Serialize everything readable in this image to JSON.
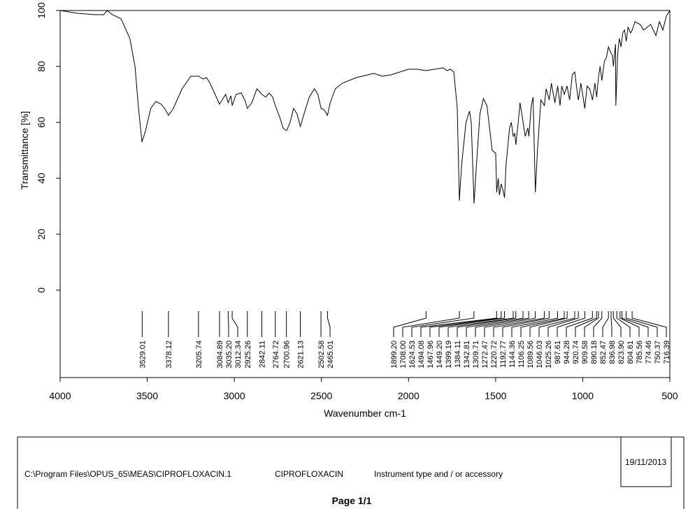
{
  "chart_data": {
    "type": "line",
    "color": "#000000",
    "xlabel": "Wavenumber cm-1",
    "ylabel": "Transmittance [%]",
    "xlim": [
      4000,
      500
    ],
    "ylim": [
      -31.25,
      100
    ],
    "xticks": [
      4000,
      3500,
      3000,
      2500,
      2000,
      1500,
      1000,
      500
    ],
    "yticks": [
      0,
      20,
      40,
      60,
      80,
      100
    ],
    "x": [
      4000,
      3900,
      3800,
      3750,
      3730,
      3700,
      3650,
      3600,
      3570,
      3550,
      3530,
      3510,
      3480,
      3450,
      3420,
      3400,
      3378,
      3350,
      3300,
      3250,
      3205,
      3180,
      3160,
      3140,
      3110,
      3085,
      3070,
      3050,
      3035,
      3020,
      3012,
      2990,
      2960,
      2940,
      2925,
      2900,
      2870,
      2842,
      2820,
      2800,
      2780,
      2765,
      2740,
      2720,
      2700,
      2680,
      2660,
      2640,
      2621,
      2600,
      2570,
      2540,
      2520,
      2502,
      2485,
      2465,
      2450,
      2420,
      2380,
      2300,
      2200,
      2150,
      2100,
      2000,
      1950,
      1900,
      1850,
      1800,
      1780,
      1760,
      1740,
      1720,
      1708,
      1695,
      1670,
      1650,
      1640,
      1624,
      1610,
      1590,
      1570,
      1550,
      1520,
      1500,
      1494,
      1485,
      1478,
      1468,
      1455,
      1449,
      1440,
      1420,
      1410,
      1399,
      1390,
      1384,
      1370,
      1360,
      1342,
      1330,
      1315,
      1309,
      1295,
      1285,
      1272,
      1260,
      1240,
      1220,
      1210,
      1192,
      1180,
      1160,
      1144,
      1130,
      1120,
      1106,
      1090,
      1075,
      1060,
      1046,
      1030,
      1025,
      1010,
      988,
      975,
      960,
      944,
      930,
      920,
      910,
      900,
      890,
      875,
      865,
      852,
      840,
      830,
      824,
      812,
      810,
      800,
      790,
      780,
      770,
      760,
      750,
      740,
      725,
      716,
      700,
      670,
      650,
      630,
      610,
      580,
      560,
      540,
      520,
      500
    ],
    "values": [
      100,
      99,
      98.5,
      98.5,
      100,
      98.5,
      97,
      90,
      80,
      65,
      53,
      57,
      65,
      67.5,
      66.5,
      65,
      62.5,
      65,
      72,
      76.5,
      76.5,
      75.5,
      76,
      74,
      70,
      66.5,
      68,
      70,
      67,
      69.5,
      66,
      70,
      70.5,
      68,
      65,
      67,
      72,
      70,
      69,
      70.5,
      69,
      66,
      62,
      58,
      57,
      60,
      65,
      63,
      58.5,
      63,
      69,
      72,
      70,
      65,
      64.5,
      62.5,
      67,
      72,
      74,
      76,
      77.5,
      76.5,
      77,
      79,
      79,
      78.5,
      79,
      79.5,
      78.5,
      79,
      78,
      65,
      32,
      45,
      60,
      64,
      60,
      31,
      45,
      63,
      68.5,
      66,
      50,
      49,
      35,
      40,
      34,
      38,
      35,
      33,
      45,
      58,
      60,
      55,
      56,
      52,
      60,
      67,
      60,
      55,
      58,
      55,
      66,
      69,
      35,
      50,
      68,
      66,
      72,
      68,
      74,
      67,
      73,
      66,
      73,
      70,
      73,
      68,
      77,
      78,
      70,
      68,
      74,
      65,
      73,
      72,
      68,
      74,
      69,
      76,
      80,
      75,
      82,
      83,
      87,
      85,
      84,
      80,
      88,
      66,
      84,
      90,
      87,
      92,
      93,
      89,
      94,
      92,
      93,
      96,
      95,
      93,
      94,
      95,
      91,
      96,
      93,
      98,
      100
    ],
    "peaks": [
      3529.01,
      3378.12,
      3205.74,
      3084.89,
      {
        "value": 3035.2,
        "label": "3035.20"
      },
      3012.34,
      2925.26,
      2842.11,
      2764.72,
      2700.96,
      2621.13,
      2502.58,
      2465.01,
      {
        "value": 1899.2,
        "label": "1899.20"
      },
      {
        "value": 1708,
        "label": "1708.00"
      },
      1624.53,
      1494.08,
      1467.96,
      {
        "value": 1449.2,
        "label": "1449.20"
      },
      1399.19,
      1384.11,
      1342.81,
      1309.71,
      1272.47,
      1220.72,
      1192.77,
      1144.36,
      1106.25,
      1089.56,
      1046.03,
      1025.26,
      987.61,
      944.28,
      920.74,
      909.58,
      890.18,
      852.47,
      836.98,
      {
        "value": 823.9,
        "label": "823.90"
      },
      804.61,
      785.56,
      774.46,
      750.37,
      716.39
    ]
  },
  "footer": {
    "path": "C:\\Program Files\\OPUS_65\\MEAS\\CIPROFLOXACIN.1",
    "sample": "CIPROFLOXACIN",
    "instrument": "Instrument type and / or accessory",
    "date": "19/11/2013",
    "page": "Page 1/1"
  }
}
